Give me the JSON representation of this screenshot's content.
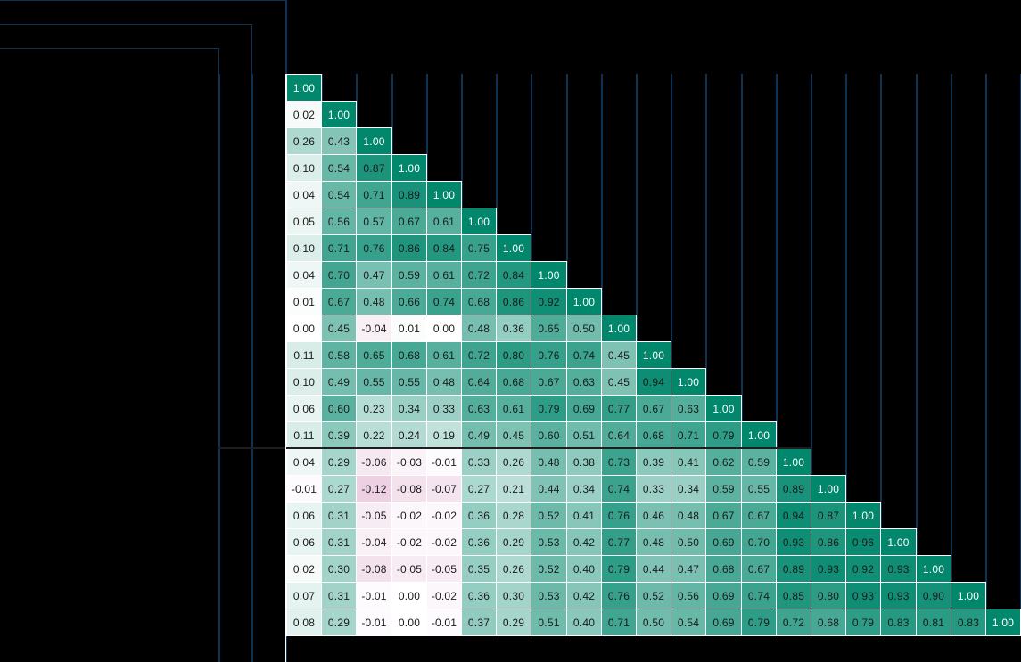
{
  "chart_data": {
    "type": "heatmap",
    "subtype": "lower-triangular correlation matrix",
    "title": "",
    "xlabel": "",
    "ylabel": "",
    "n": 21,
    "color_scale": {
      "negative": "#e8c6dc",
      "zero": "#ffffff",
      "positive": "#00876c"
    },
    "value_range": [
      -1,
      1
    ],
    "separator_after_row": 13,
    "rows": [
      [
        1.0
      ],
      [
        0.02,
        1.0
      ],
      [
        0.26,
        0.43,
        1.0
      ],
      [
        0.1,
        0.54,
        0.87,
        1.0
      ],
      [
        0.04,
        0.54,
        0.71,
        0.89,
        1.0
      ],
      [
        0.05,
        0.56,
        0.57,
        0.67,
        0.61,
        1.0
      ],
      [
        0.1,
        0.71,
        0.76,
        0.86,
        0.84,
        0.75,
        1.0
      ],
      [
        0.04,
        0.7,
        0.47,
        0.59,
        0.61,
        0.72,
        0.84,
        1.0
      ],
      [
        0.01,
        0.67,
        0.48,
        0.66,
        0.74,
        0.68,
        0.86,
        0.92,
        1.0
      ],
      [
        0.0,
        0.45,
        -0.04,
        0.01,
        0.0,
        0.48,
        0.36,
        0.65,
        0.5,
        1.0
      ],
      [
        0.11,
        0.58,
        0.65,
        0.68,
        0.61,
        0.72,
        0.8,
        0.76,
        0.74,
        0.45,
        1.0
      ],
      [
        0.1,
        0.49,
        0.55,
        0.55,
        0.48,
        0.64,
        0.68,
        0.67,
        0.63,
        0.45,
        0.94,
        1.0
      ],
      [
        0.06,
        0.6,
        0.23,
        0.34,
        0.33,
        0.63,
        0.61,
        0.79,
        0.69,
        0.77,
        0.67,
        0.63,
        1.0
      ],
      [
        0.11,
        0.39,
        0.22,
        0.24,
        0.19,
        0.49,
        0.45,
        0.6,
        0.51,
        0.64,
        0.68,
        0.71,
        0.79,
        1.0
      ],
      [
        0.04,
        0.29,
        -0.06,
        -0.03,
        -0.01,
        0.33,
        0.26,
        0.48,
        0.38,
        0.73,
        0.39,
        0.41,
        0.62,
        0.59,
        1.0
      ],
      [
        -0.01,
        0.27,
        -0.12,
        -0.08,
        -0.07,
        0.27,
        0.21,
        0.44,
        0.34,
        0.74,
        0.33,
        0.34,
        0.59,
        0.55,
        0.89,
        1.0
      ],
      [
        0.06,
        0.31,
        -0.05,
        -0.02,
        -0.02,
        0.36,
        0.28,
        0.52,
        0.41,
        0.76,
        0.46,
        0.48,
        0.67,
        0.67,
        0.94,
        0.87,
        1.0
      ],
      [
        0.06,
        0.31,
        -0.04,
        -0.02,
        -0.02,
        0.36,
        0.29,
        0.53,
        0.42,
        0.77,
        0.48,
        0.5,
        0.69,
        0.7,
        0.93,
        0.86,
        0.96,
        1.0
      ],
      [
        0.02,
        0.3,
        -0.08,
        -0.05,
        -0.05,
        0.35,
        0.26,
        0.52,
        0.4,
        0.79,
        0.44,
        0.47,
        0.68,
        0.67,
        0.89,
        0.93,
        0.92,
        0.93,
        1.0
      ],
      [
        0.07,
        0.31,
        -0.01,
        0.0,
        -0.02,
        0.36,
        0.3,
        0.53,
        0.42,
        0.76,
        0.52,
        0.56,
        0.69,
        0.74,
        0.85,
        0.8,
        0.93,
        0.93,
        0.9,
        1.0
      ],
      [
        0.08,
        0.29,
        -0.01,
        0.0,
        -0.01,
        0.37,
        0.29,
        0.51,
        0.4,
        0.71,
        0.5,
        0.54,
        0.69,
        0.79,
        0.72,
        0.68,
        0.79,
        0.83,
        0.81,
        0.83,
        1.0
      ]
    ],
    "legend": null,
    "grid": false
  }
}
